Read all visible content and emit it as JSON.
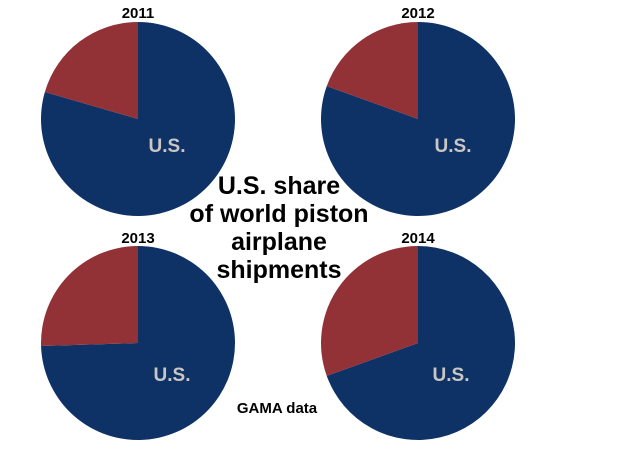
{
  "title_lines": [
    "U.S. share",
    "of world piston",
    "airplane",
    "shipments"
  ],
  "source": "GAMA data",
  "colors": {
    "us": "#0f3266",
    "rest": "#923236",
    "label": "#c9c6c3"
  },
  "chart_data": [
    {
      "type": "pie",
      "title": "2011",
      "slice_labels": [
        "U.S.",
        ""
      ],
      "values": [
        79.5,
        20.5
      ]
    },
    {
      "type": "pie",
      "title": "2012",
      "slice_labels": [
        "U.S.",
        ""
      ],
      "values": [
        80.5,
        19.5
      ]
    },
    {
      "type": "pie",
      "title": "2013",
      "slice_labels": [
        "U.S.",
        ""
      ],
      "values": [
        74.5,
        25.5
      ]
    },
    {
      "type": "pie",
      "title": "2014",
      "slice_labels": [
        "U.S.",
        ""
      ],
      "values": [
        69.5,
        30.5
      ]
    }
  ]
}
